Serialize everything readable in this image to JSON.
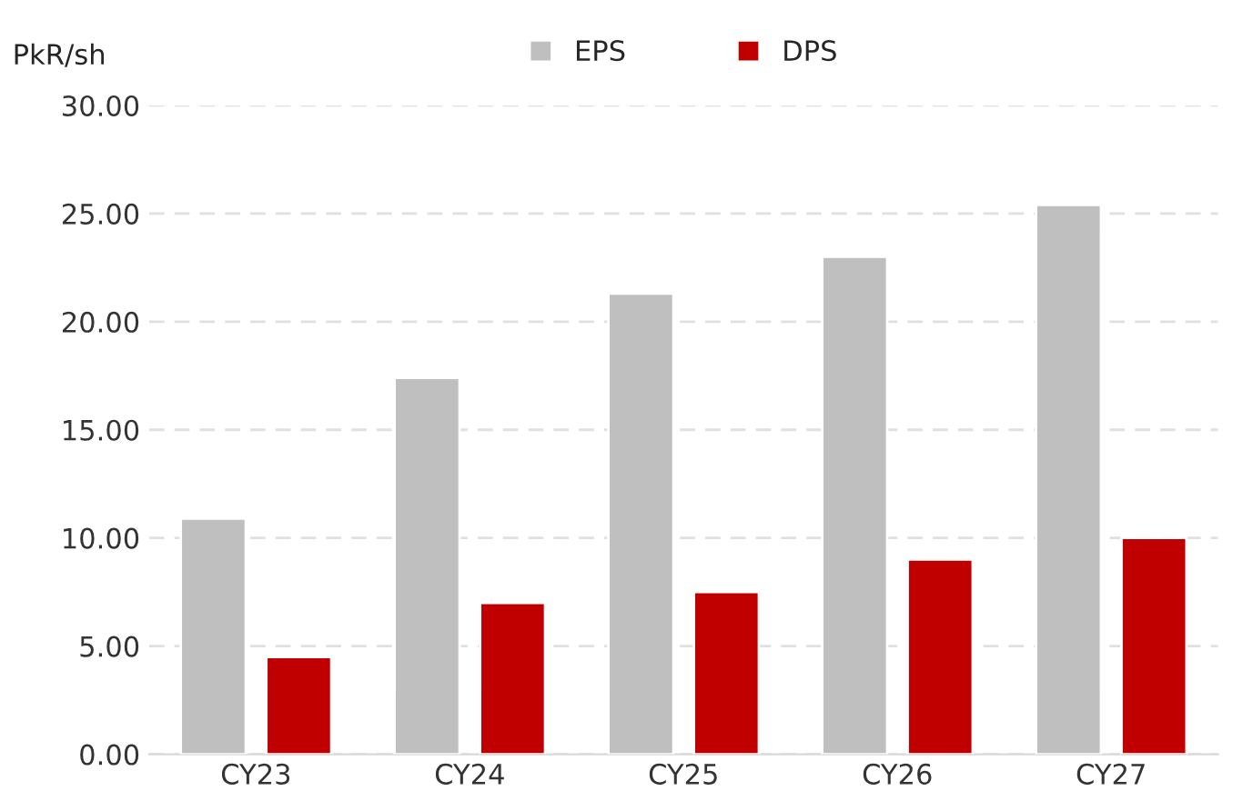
{
  "chart_data": {
    "type": "bar",
    "ylabel": "PkR/sh",
    "categories": [
      "CY23",
      "CY24",
      "CY25",
      "CY26",
      "CY27"
    ],
    "series": [
      {
        "name": "EPS",
        "color": "#bfbfbf",
        "values": [
          10.9,
          17.4,
          21.3,
          23.0,
          25.4
        ]
      },
      {
        "name": "DPS",
        "color": "#c00000",
        "values": [
          4.5,
          7.0,
          7.5,
          9.0,
          10.0
        ]
      }
    ],
    "ylim": [
      0,
      30
    ],
    "yticks": [
      {
        "value": 0,
        "label": "0.00"
      },
      {
        "value": 5,
        "label": "5.00"
      },
      {
        "value": 10,
        "label": "10.00"
      },
      {
        "value": 15,
        "label": "15.00"
      },
      {
        "value": 20,
        "label": "20.00"
      },
      {
        "value": 25,
        "label": "25.00"
      },
      {
        "value": 30,
        "label": "30.00"
      }
    ],
    "grid": "y",
    "legend": "top"
  }
}
